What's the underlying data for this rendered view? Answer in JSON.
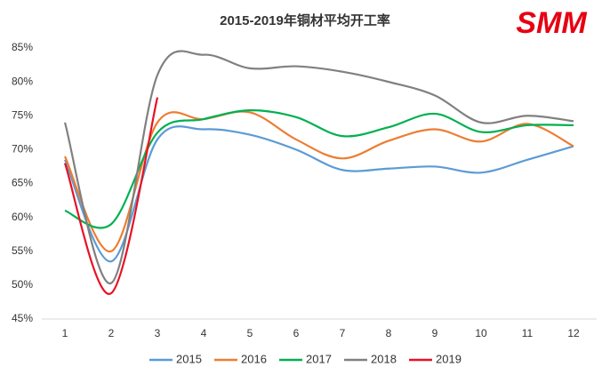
{
  "chart_data": {
    "type": "line",
    "title": "2015-2019年铜材平均开工率",
    "logo": "SMM",
    "categories": [
      "1",
      "2",
      "3",
      "4",
      "5",
      "6",
      "7",
      "8",
      "9",
      "10",
      "11",
      "12"
    ],
    "series": [
      {
        "name": "2015",
        "color": "#5b9bd5",
        "values": [
          68.5,
          53.5,
          71.5,
          73,
          72.2,
          70,
          67,
          67.2,
          67.5,
          66.6,
          68.5,
          70.5
        ]
      },
      {
        "name": "2016",
        "color": "#ed7d31",
        "values": [
          69,
          55,
          74,
          74.5,
          75.5,
          71.5,
          68.7,
          71.3,
          73,
          71.2,
          73.8,
          70.5
        ]
      },
      {
        "name": "2017",
        "color": "#00b050",
        "values": [
          61,
          59,
          72.5,
          74.5,
          75.8,
          74.8,
          72,
          73.3,
          75.3,
          72.6,
          73.6,
          73.6
        ]
      },
      {
        "name": "2018",
        "color": "#808080",
        "values": [
          74,
          50.3,
          81,
          84,
          82,
          82.3,
          81.5,
          80,
          78,
          74,
          75,
          74.2
        ]
      },
      {
        "name": "2019",
        "color": "#e81123",
        "values": [
          68,
          48.8,
          77.7,
          null,
          null,
          null,
          null,
          null,
          null,
          null,
          null,
          null
        ]
      }
    ],
    "ylim": [
      45,
      85
    ],
    "yticks": [
      {
        "value": 45,
        "label": "45%"
      },
      {
        "value": 50,
        "label": "50%"
      },
      {
        "value": 55,
        "label": "55%"
      },
      {
        "value": 60,
        "label": "60%"
      },
      {
        "value": 65,
        "label": "65%"
      },
      {
        "value": 70,
        "label": "70%"
      },
      {
        "value": 75,
        "label": "75%"
      },
      {
        "value": 80,
        "label": "80%"
      },
      {
        "value": 85,
        "label": "85%"
      }
    ],
    "grid": false,
    "legend": "bottom"
  }
}
